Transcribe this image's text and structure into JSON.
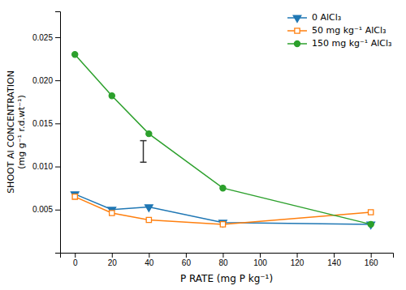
{
  "chart_data": {
    "type": "line",
    "x_label": "P RATE (mg P kg⁻¹)",
    "y_label": [
      "SHOOT Al CONCENTRATION",
      "(mg g⁻¹ r.d.wt⁻¹)"
    ],
    "x": [
      0,
      20,
      40,
      80,
      160
    ],
    "series": [
      {
        "name": "0 AlCl₃",
        "marker": "triangle-down",
        "values": [
          0.0068,
          0.005,
          0.0053,
          0.0035,
          0.0033
        ]
      },
      {
        "name": "50 mg kg⁻¹ AlCl₃",
        "marker": "square-open",
        "values": [
          0.0065,
          0.0046,
          0.0038,
          0.0033,
          0.0047
        ]
      },
      {
        "name": "150 mg kg⁻¹ AlCl₃",
        "marker": "circle",
        "values": [
          0.023,
          0.0182,
          0.0138,
          0.0075,
          0.0033
        ]
      }
    ],
    "lsd_bar": {
      "x": 37,
      "low": 0.0105,
      "high": 0.013
    },
    "xlim": [
      -8,
      172
    ],
    "ylim": [
      0.0,
      0.028
    ],
    "xticks": [
      0,
      20,
      40,
      60,
      80,
      100,
      120,
      140,
      160
    ],
    "yticks": [
      0.005,
      {
        "value": 0.01,
        "label": "0.010"
      },
      0.015,
      {
        "value": 0.02,
        "label": "0.020"
      },
      0.025
    ],
    "grid": false,
    "legend": "top-right"
  }
}
